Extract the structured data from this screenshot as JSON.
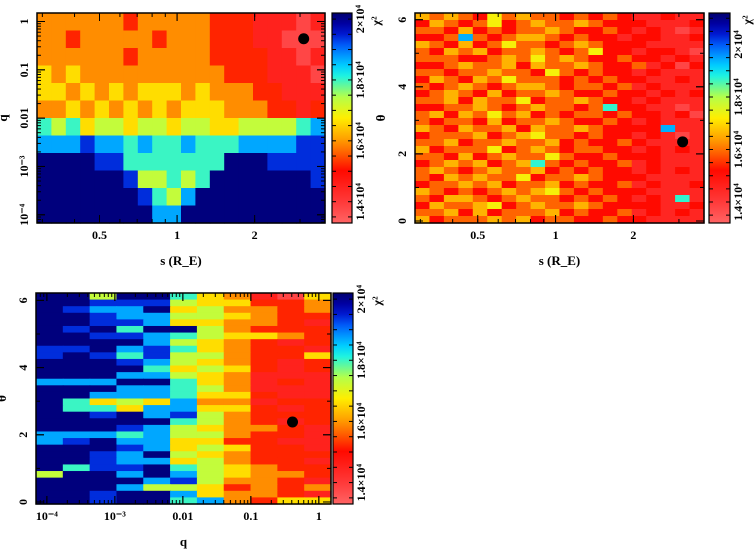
{
  "level_scale": {
    "description": "cell value = min + level*step (chi^2 in units of 10^4)",
    "min": 1.38,
    "step": 0.07
  },
  "chart_data": [
    {
      "type": "heatmap",
      "id": "s-q",
      "xlabel": "s (R_E)",
      "ylabel": "q",
      "xscale": "log",
      "xlim": [
        0.286,
        3.75
      ],
      "xticks": [
        0.5,
        1,
        2
      ],
      "xtick_labels": [
        "0.5",
        "1",
        "2"
      ],
      "yscale": "log",
      "ylim": [
        6.76e-05,
        1.5
      ],
      "yticks": [
        0.0001,
        0.001,
        0.01,
        0.1,
        1
      ],
      "ytick_labels": [
        "10⁻⁴",
        "10⁻³",
        "0.01",
        "0.1",
        "1"
      ],
      "colorbar": {
        "label": "χ²",
        "range": [
          1.33,
          2.02
        ],
        "ticks": [
          1.4,
          1.6,
          1.8,
          2.0
        ],
        "tick_labels": [
          "1.4×10⁴",
          "1.6×10⁴",
          "1.8×10⁴",
          "2×10⁴"
        ]
      },
      "best_fit": {
        "x": 3.1,
        "y": 0.44
      },
      "levels": [
        "33333323333322211101",
        "33233333233322211000",
        "33333323333322221101",
        "43433333333332221110",
        "44343434443433322111",
        "33434343434443332212",
        "65645545545544555567",
        "77787767667666777788",
        "99998866666669998888",
        "99999985565699999998",
        "99999998657999999999",
        "99999999779999999999"
      ]
    },
    {
      "type": "heatmap",
      "id": "s-theta",
      "xlabel": "s (R_E)",
      "ylabel": "θ",
      "xscale": "log",
      "xlim": [
        0.286,
        3.75
      ],
      "xticks": [
        0.5,
        1,
        2
      ],
      "xtick_labels": [
        "0.5",
        "1",
        "2"
      ],
      "yscale": "linear",
      "ylim": [
        -0.06,
        6.2
      ],
      "yticks": [
        0,
        2,
        4,
        6
      ],
      "ytick_labels": [
        "0",
        "2",
        "4",
        "6"
      ],
      "colorbar": {
        "label": "χ²",
        "range": [
          1.32,
          2.12
        ],
        "ticks": [
          1.4,
          1.6,
          1.8,
          2.0
        ],
        "tick_labels": [
          "1.4×10⁴",
          "1.6×10⁴",
          "1.8×10⁴",
          "2×10⁴"
        ]
      },
      "best_fit": {
        "x": 3.1,
        "y": 2.36
      },
      "levels": [
        "43432534332323211211",
        "24323523433432221112",
        "33242323343223212101",
        "22383234432322122112",
        "43242353323432221111",
        "32434233432352212210",
        "33322343534322322121",
        "22343342433432231202",
        "33233433253232212111",
        "24324353332323221121",
        "32343234432332312111",
        "23432423343223221212",
        "33424335233432212111",
        "22334323433237221101",
        "34243534232332322120",
        "32332423343223212111",
        "43243342433432222811",
        "23334234533232212101",
        "33423343342322321111",
        "42333523432332212121",
        "33242343353223222111",
        "23434234732322312111",
        "34323433423232212121",
        "32434335233432221111",
        "23343423342322312112",
        "43232343453232221111",
        "32443234332323212171",
        "24334523433432222112",
        "33424233342322312121",
        "42333434233223221111"
      ]
    },
    {
      "type": "heatmap",
      "id": "q-theta",
      "xlabel": "q",
      "ylabel": "θ",
      "xscale": "log",
      "xlim": [
        6.92e-05,
        1.51
      ],
      "xticks": [
        0.0001,
        0.001,
        0.01,
        0.1,
        1
      ],
      "xtick_labels": [
        "10⁻⁴",
        "10⁻³",
        "0.01",
        "0.1",
        "1"
      ],
      "yscale": "linear",
      "ylim": [
        -0.06,
        6.22
      ],
      "yticks": [
        0,
        2,
        4,
        6
      ],
      "ytick_labels": [
        "0",
        "2",
        "4",
        "6"
      ],
      "colorbar": {
        "label": "χ²",
        "range": [
          1.33,
          2.02
        ],
        "ticks": [
          1.4,
          1.6,
          1.8,
          2.0
        ],
        "tick_labels": [
          "1.4×10⁴",
          "1.6×10⁴",
          "1.8×10⁴",
          "2×10⁴"
        ]
      },
      "best_fit": {
        "x": 0.41,
        "y": 2.38
      },
      "levels": [
        "99599643104",
        "99888544223",
        "98779453323",
        "99877554322",
        "99887443321",
        "98969953222",
        "99887654432",
        "99997543212",
        "88978643221",
        "89868553224",
        "99987543212",
        "99996454212",
        "99977543111",
        "77799643121",
        "99977653111",
        "99777644211",
        "96454733122",
        "96647744212",
        "99897853222",
        "99999653212",
        "99987543321",
        "77767553221",
        "78977442211",
        "99987454221",
        "99879543222",
        "99877453221",
        "96889654322",
        "59979754332",
        "99997853321",
        "99975542323",
        "99899743321",
        "99899673244"
      ]
    }
  ],
  "colors": {
    "best_fit_marker": "#000000",
    "axis": "#000000"
  }
}
